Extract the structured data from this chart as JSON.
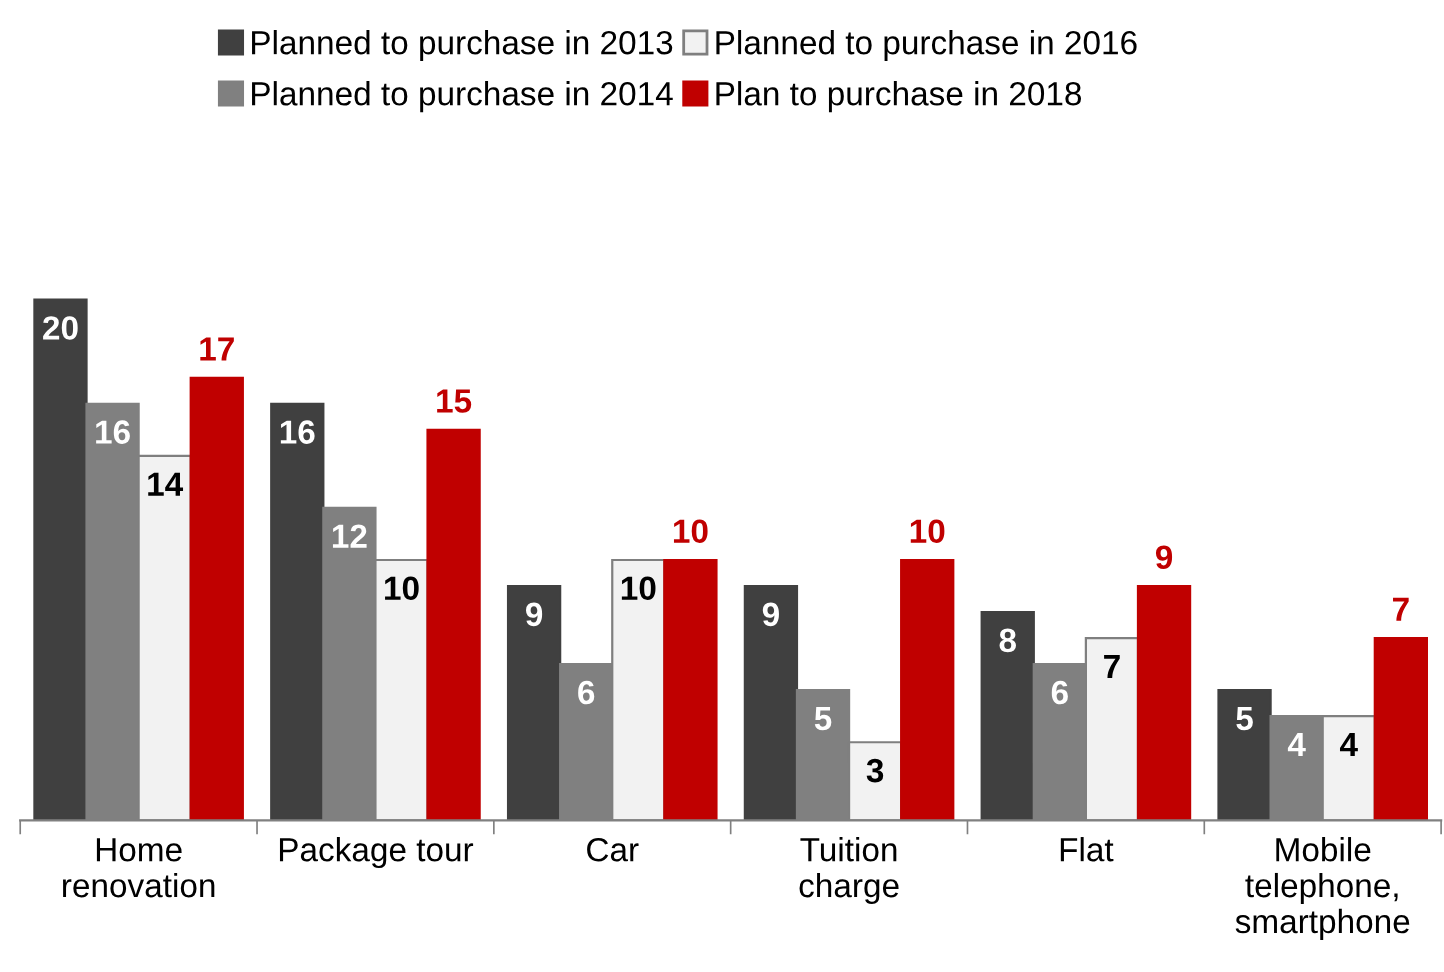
{
  "chart_data": {
    "type": "bar",
    "categories": [
      "Home\nrenovation",
      "Package tour",
      "Car",
      "Tuition\ncharge",
      "Flat",
      "Mobile\ntelephone,\nsmartphone"
    ],
    "series": [
      {
        "name": "Planned to purchase in 2013",
        "color": "#404040",
        "values": [
          20,
          16,
          9,
          9,
          8,
          5
        ]
      },
      {
        "name": "Planned to purchase in 2014",
        "color": "#808080",
        "values": [
          16,
          12,
          6,
          5,
          6,
          4
        ]
      },
      {
        "name": "Planned to purchase in 2016",
        "color": "#f2f2f2",
        "values": [
          14,
          10,
          10,
          3,
          7,
          4
        ]
      },
      {
        "name": "Plan to purchase in 2018",
        "color": "#c00000",
        "values": [
          17,
          15,
          10,
          10,
          9,
          7
        ]
      }
    ],
    "data_labels": true,
    "legend": "top",
    "grid": false
  }
}
